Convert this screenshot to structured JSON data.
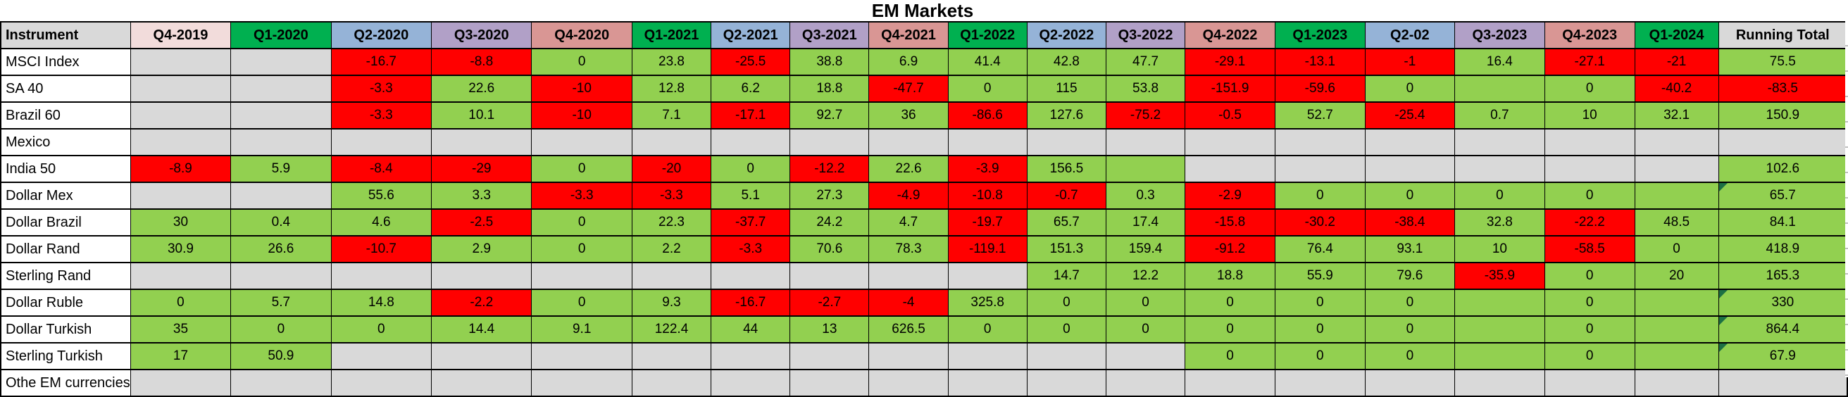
{
  "title": "EM Markets",
  "header": {
    "instrument_label": "Instrument",
    "running_total_label": "Running Total"
  },
  "colors": {
    "positive_cell": "#92d050",
    "negative_cell": "#ff0000",
    "empty_cell": "#d9d9d9",
    "header_gray": "#d9d9d9",
    "q4_2019_header": "#f2dcdb",
    "q1_header": "#00b050",
    "q2_header": "#95b3d7",
    "q3_header": "#b1a0c7",
    "q4_header": "#d99694",
    "flag_triangle": "#1d7044",
    "border": "#000000"
  },
  "columns": [
    {
      "label": "Q4-2019",
      "color_key": "q4_2019_header"
    },
    {
      "label": "Q1-2020",
      "color_key": "q1_header"
    },
    {
      "label": "Q2-2020",
      "color_key": "q2_header"
    },
    {
      "label": "Q3-2020",
      "color_key": "q3_header"
    },
    {
      "label": "Q4-2020",
      "color_key": "q4_header"
    },
    {
      "label": "Q1-2021",
      "color_key": "q1_header"
    },
    {
      "label": "Q2-2021",
      "color_key": "q2_header"
    },
    {
      "label": "Q3-2021",
      "color_key": "q3_header"
    },
    {
      "label": "Q4-2021",
      "color_key": "q4_header"
    },
    {
      "label": "Q1-2022",
      "color_key": "q1_header"
    },
    {
      "label": "Q2-2022",
      "color_key": "q2_header"
    },
    {
      "label": "Q3-2022",
      "color_key": "q3_header"
    },
    {
      "label": "Q4-2022",
      "color_key": "q4_header"
    },
    {
      "label": "Q1-2023",
      "color_key": "q1_header"
    },
    {
      "label": "Q2-02",
      "color_key": "q2_header"
    },
    {
      "label": "Q3-2023",
      "color_key": "q3_header"
    },
    {
      "label": "Q4-2023",
      "color_key": "q4_header"
    },
    {
      "label": "Q1-2024",
      "color_key": "q1_header"
    }
  ],
  "rows": [
    {
      "name": "MSCI Index",
      "cells": [
        [
          "",
          "x"
        ],
        [
          "",
          "x"
        ],
        [
          "-16.7",
          "r"
        ],
        [
          "-8.8",
          "r"
        ],
        [
          "0",
          "g"
        ],
        [
          "23.8",
          "g"
        ],
        [
          "-25.5",
          "r"
        ],
        [
          "38.8",
          "g"
        ],
        [
          "6.9",
          "g"
        ],
        [
          "41.4",
          "g"
        ],
        [
          "42.8",
          "g"
        ],
        [
          "47.7",
          "g"
        ],
        [
          "-29.1",
          "r"
        ],
        [
          "-13.1",
          "r"
        ],
        [
          "-1",
          "r"
        ],
        [
          "16.4",
          "g"
        ],
        [
          "-27.1",
          "r"
        ],
        [
          "-21",
          "r"
        ]
      ],
      "total": {
        "value": "75.5",
        "code": "g",
        "flag": false
      }
    },
    {
      "name": "SA 40",
      "cells": [
        [
          "",
          "x"
        ],
        [
          "",
          "x"
        ],
        [
          "-3.3",
          "r"
        ],
        [
          "22.6",
          "g"
        ],
        [
          "-10",
          "r"
        ],
        [
          "12.8",
          "g"
        ],
        [
          "6.2",
          "g"
        ],
        [
          "18.8",
          "g"
        ],
        [
          "-47.7",
          "r"
        ],
        [
          "0",
          "g"
        ],
        [
          "115",
          "g"
        ],
        [
          "53.8",
          "g"
        ],
        [
          "-151.9",
          "r"
        ],
        [
          "-59.6",
          "r"
        ],
        [
          "0",
          "g"
        ],
        [
          "",
          "g"
        ],
        [
          "0",
          "g"
        ],
        [
          "-40.2",
          "r"
        ]
      ],
      "total": {
        "value": "-83.5",
        "code": "r",
        "flag": false
      }
    },
    {
      "name": "Brazil 60",
      "cells": [
        [
          "",
          "x"
        ],
        [
          "",
          "x"
        ],
        [
          "-3.3",
          "r"
        ],
        [
          "10.1",
          "g"
        ],
        [
          "-10",
          "r"
        ],
        [
          "7.1",
          "g"
        ],
        [
          "-17.1",
          "r"
        ],
        [
          "92.7",
          "g"
        ],
        [
          "36",
          "g"
        ],
        [
          "-86.6",
          "r"
        ],
        [
          "127.6",
          "g"
        ],
        [
          "-75.2",
          "r"
        ],
        [
          "-0.5",
          "r"
        ],
        [
          "52.7",
          "g"
        ],
        [
          "-25.4",
          "r"
        ],
        [
          "0.7",
          "g"
        ],
        [
          "10",
          "g"
        ],
        [
          "32.1",
          "g"
        ]
      ],
      "total": {
        "value": "150.9",
        "code": "g",
        "flag": false
      }
    },
    {
      "name": "Mexico",
      "cells": [
        [
          "",
          "x"
        ],
        [
          "",
          "x"
        ],
        [
          "",
          "x"
        ],
        [
          "",
          "x"
        ],
        [
          "",
          "x"
        ],
        [
          "",
          "x"
        ],
        [
          "",
          "x"
        ],
        [
          "",
          "x"
        ],
        [
          "",
          "x"
        ],
        [
          "",
          "x"
        ],
        [
          "",
          "x"
        ],
        [
          "",
          "x"
        ],
        [
          "",
          "x"
        ],
        [
          "",
          "x"
        ],
        [
          "",
          "x"
        ],
        [
          "",
          "x"
        ],
        [
          "",
          "x"
        ],
        [
          "",
          "x"
        ]
      ],
      "total": {
        "value": "",
        "code": "x",
        "flag": false
      }
    },
    {
      "name": "India 50",
      "cells": [
        [
          "-8.9",
          "r"
        ],
        [
          "5.9",
          "g"
        ],
        [
          "-8.4",
          "r"
        ],
        [
          "-29",
          "r"
        ],
        [
          "0",
          "g"
        ],
        [
          "-20",
          "r"
        ],
        [
          "0",
          "g"
        ],
        [
          "-12.2",
          "r"
        ],
        [
          "22.6",
          "g"
        ],
        [
          "-3.9",
          "r"
        ],
        [
          "156.5",
          "g"
        ],
        [
          "",
          "g"
        ],
        [
          "",
          "x"
        ],
        [
          "",
          "x"
        ],
        [
          "",
          "x"
        ],
        [
          "",
          "x"
        ],
        [
          "",
          "x"
        ],
        [
          "",
          "x"
        ]
      ],
      "total": {
        "value": "102.6",
        "code": "g",
        "flag": false
      }
    },
    {
      "name": "Dollar Mex",
      "cells": [
        [
          "",
          "x"
        ],
        [
          "",
          "x"
        ],
        [
          "55.6",
          "g"
        ],
        [
          "3.3",
          "g"
        ],
        [
          "-3.3",
          "r"
        ],
        [
          "-3.3",
          "r"
        ],
        [
          "5.1",
          "g"
        ],
        [
          "27.3",
          "g"
        ],
        [
          "-4.9",
          "r"
        ],
        [
          "-10.8",
          "r"
        ],
        [
          "-0.7",
          "r"
        ],
        [
          "0.3",
          "g"
        ],
        [
          "-2.9",
          "r"
        ],
        [
          "0",
          "g"
        ],
        [
          "0",
          "g"
        ],
        [
          "0",
          "g"
        ],
        [
          "0",
          "g"
        ],
        [
          "",
          "g"
        ]
      ],
      "total": {
        "value": "65.7",
        "code": "g",
        "flag": true
      }
    },
    {
      "name": "Dollar Brazil",
      "cells": [
        [
          "30",
          "g"
        ],
        [
          "0.4",
          "g"
        ],
        [
          "4.6",
          "g"
        ],
        [
          "-2.5",
          "r"
        ],
        [
          "0",
          "g"
        ],
        [
          "22.3",
          "g"
        ],
        [
          "-37.7",
          "r"
        ],
        [
          "24.2",
          "g"
        ],
        [
          "4.7",
          "g"
        ],
        [
          "-19.7",
          "r"
        ],
        [
          "65.7",
          "g"
        ],
        [
          "17.4",
          "g"
        ],
        [
          "-15.8",
          "r"
        ],
        [
          "-30.2",
          "r"
        ],
        [
          "-38.4",
          "r"
        ],
        [
          "32.8",
          "g"
        ],
        [
          "-22.2",
          "r"
        ],
        [
          "48.5",
          "g"
        ]
      ],
      "total": {
        "value": "84.1",
        "code": "g",
        "flag": false
      }
    },
    {
      "name": "Dollar Rand",
      "cells": [
        [
          "30.9",
          "g"
        ],
        [
          "26.6",
          "g"
        ],
        [
          "-10.7",
          "r"
        ],
        [
          "2.9",
          "g"
        ],
        [
          "0",
          "g"
        ],
        [
          "2.2",
          "g"
        ],
        [
          "-3.3",
          "r"
        ],
        [
          "70.6",
          "g"
        ],
        [
          "78.3",
          "g"
        ],
        [
          "-119.1",
          "r"
        ],
        [
          "151.3",
          "g"
        ],
        [
          "159.4",
          "g"
        ],
        [
          "-91.2",
          "r"
        ],
        [
          "76.4",
          "g"
        ],
        [
          "93.1",
          "g"
        ],
        [
          "10",
          "g"
        ],
        [
          "-58.5",
          "r"
        ],
        [
          "0",
          "g"
        ]
      ],
      "total": {
        "value": "418.9",
        "code": "g",
        "flag": false
      }
    },
    {
      "name": "Sterling Rand",
      "cells": [
        [
          "",
          "x"
        ],
        [
          "",
          "x"
        ],
        [
          "",
          "x"
        ],
        [
          "",
          "x"
        ],
        [
          "",
          "x"
        ],
        [
          "",
          "x"
        ],
        [
          "",
          "x"
        ],
        [
          "",
          "x"
        ],
        [
          "",
          "x"
        ],
        [
          "",
          "x"
        ],
        [
          "14.7",
          "g"
        ],
        [
          "12.2",
          "g"
        ],
        [
          "18.8",
          "g"
        ],
        [
          "55.9",
          "g"
        ],
        [
          "79.6",
          "g"
        ],
        [
          "-35.9",
          "r"
        ],
        [
          "0",
          "g"
        ],
        [
          "20",
          "g"
        ]
      ],
      "total": {
        "value": "165.3",
        "code": "g",
        "flag": false
      }
    },
    {
      "name": "Dollar Ruble",
      "cells": [
        [
          "0",
          "g"
        ],
        [
          "5.7",
          "g"
        ],
        [
          "14.8",
          "g"
        ],
        [
          "-2.2",
          "r"
        ],
        [
          "0",
          "g"
        ],
        [
          "9.3",
          "g"
        ],
        [
          "-16.7",
          "r"
        ],
        [
          "-2.7",
          "r"
        ],
        [
          "-4",
          "r"
        ],
        [
          "325.8",
          "g"
        ],
        [
          "0",
          "g"
        ],
        [
          "0",
          "g"
        ],
        [
          "0",
          "g"
        ],
        [
          "0",
          "g"
        ],
        [
          "0",
          "g"
        ],
        [
          "",
          "g"
        ],
        [
          "0",
          "g"
        ],
        [
          "",
          "g"
        ]
      ],
      "total": {
        "value": "330",
        "code": "g",
        "flag": true
      }
    },
    {
      "name": "Dollar Turkish",
      "cells": [
        [
          "35",
          "g"
        ],
        [
          "0",
          "g"
        ],
        [
          "0",
          "g"
        ],
        [
          "14.4",
          "g"
        ],
        [
          "9.1",
          "g"
        ],
        [
          "122.4",
          "g"
        ],
        [
          "44",
          "g"
        ],
        [
          "13",
          "g"
        ],
        [
          "626.5",
          "g"
        ],
        [
          "0",
          "g"
        ],
        [
          "0",
          "g"
        ],
        [
          "0",
          "g"
        ],
        [
          "0",
          "g"
        ],
        [
          "0",
          "g"
        ],
        [
          "0",
          "g"
        ],
        [
          "",
          "g"
        ],
        [
          "0",
          "g"
        ],
        [
          "",
          "g"
        ]
      ],
      "total": {
        "value": "864.4",
        "code": "g",
        "flag": true
      }
    },
    {
      "name": "Sterling Turkish",
      "cells": [
        [
          "17",
          "g"
        ],
        [
          "50.9",
          "g"
        ],
        [
          "",
          "x"
        ],
        [
          "",
          "x"
        ],
        [
          "",
          "x"
        ],
        [
          "",
          "x"
        ],
        [
          "",
          "x"
        ],
        [
          "",
          "x"
        ],
        [
          "",
          "x"
        ],
        [
          "",
          "x"
        ],
        [
          "",
          "x"
        ],
        [
          "",
          "x"
        ],
        [
          "0",
          "g"
        ],
        [
          "0",
          "g"
        ],
        [
          "0",
          "g"
        ],
        [
          "",
          "g"
        ],
        [
          "0",
          "g"
        ],
        [
          "",
          "g"
        ]
      ],
      "total": {
        "value": "67.9",
        "code": "g",
        "flag": true
      }
    },
    {
      "name": "Othe EM currencies",
      "cells": [
        [
          "",
          "x"
        ],
        [
          "",
          "x"
        ],
        [
          "",
          "x"
        ],
        [
          "",
          "x"
        ],
        [
          "",
          "x"
        ],
        [
          "",
          "x"
        ],
        [
          "",
          "x"
        ],
        [
          "",
          "x"
        ],
        [
          "",
          "x"
        ],
        [
          "",
          "x"
        ],
        [
          "",
          "x"
        ],
        [
          "",
          "x"
        ],
        [
          "",
          "x"
        ],
        [
          "",
          "x"
        ],
        [
          "",
          "x"
        ],
        [
          "",
          "x"
        ],
        [
          "",
          "x"
        ],
        [
          "",
          "x"
        ]
      ],
      "total": {
        "value": "",
        "code": "x",
        "flag": false
      }
    }
  ]
}
